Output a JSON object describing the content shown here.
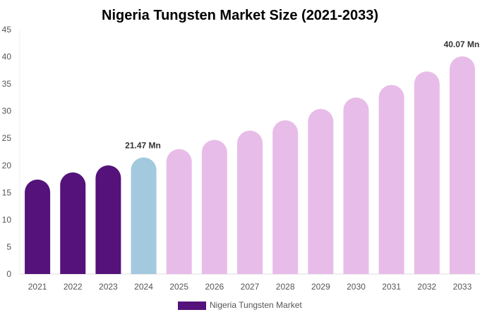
{
  "chart_data": {
    "type": "bar",
    "title": "Nigeria Tungsten Market Size (2021-2033)",
    "xlabel": "",
    "ylabel": "",
    "ylim": [
      0,
      45
    ],
    "yticks": [
      0,
      5,
      10,
      15,
      20,
      25,
      30,
      35,
      40,
      45
    ],
    "categories": [
      "2021",
      "2022",
      "2023",
      "2024",
      "2025",
      "2026",
      "2027",
      "2028",
      "2029",
      "2030",
      "2031",
      "2032",
      "2033"
    ],
    "series": [
      {
        "name": "Nigeria Tungsten Market",
        "values": [
          17.4,
          18.7,
          20.0,
          21.47,
          23.0,
          24.7,
          26.4,
          28.3,
          30.4,
          32.5,
          34.8,
          37.3,
          40.07
        ]
      }
    ],
    "bar_colors": [
      "#54127a",
      "#54127a",
      "#54127a",
      "#a3c9de",
      "#e8bce8",
      "#e8bce8",
      "#e8bce8",
      "#e8bce8",
      "#e8bce8",
      "#e8bce8",
      "#e8bce8",
      "#e8bce8",
      "#e8bce8"
    ],
    "data_labels": [
      {
        "category": "2024",
        "text": "21.47 Mn"
      },
      {
        "category": "2033",
        "text": "40.07 Mn"
      }
    ],
    "legend": {
      "position": "bottom",
      "label": "Nigeria Tungsten Market",
      "color": "#54127a"
    },
    "grid": false
  }
}
